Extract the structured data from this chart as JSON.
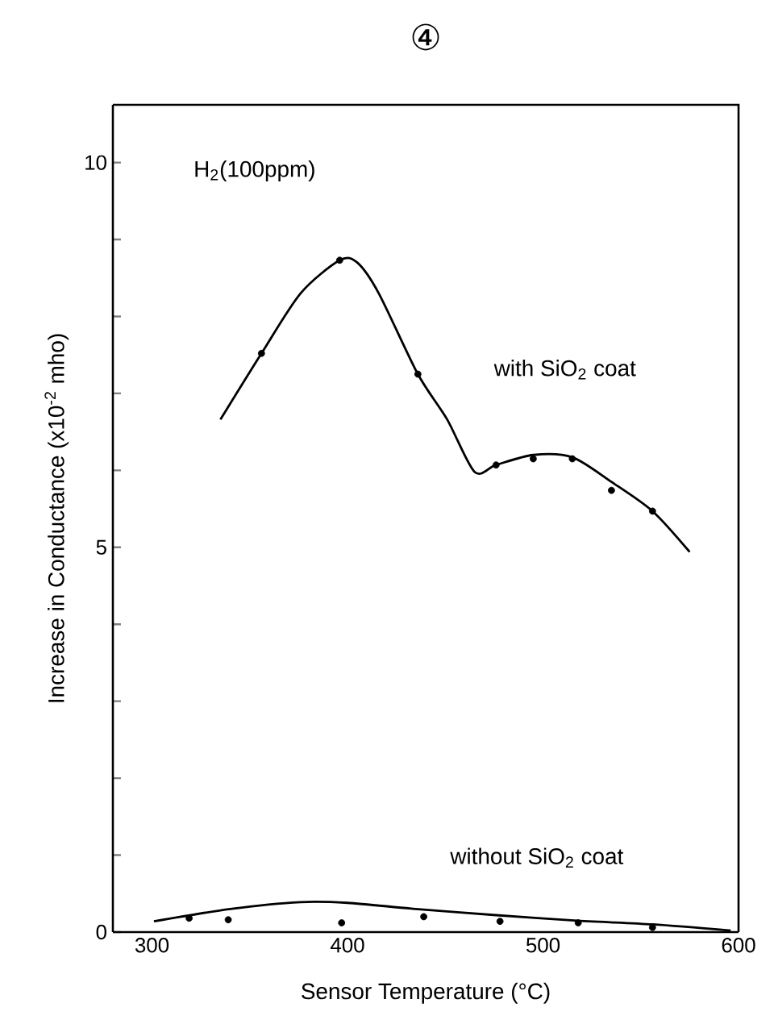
{
  "chart_data": {
    "type": "line",
    "title": "④",
    "xlabel": "Sensor Temperature (°C)",
    "ylabel": "Increase in Conductance (x10$^{-2}$ mho)",
    "xlim": [
      280,
      600
    ],
    "ylim": [
      0,
      10.75
    ],
    "xticks": [
      300,
      400,
      500,
      600
    ],
    "yticks": [
      0,
      {
        "value": 1,
        "label": null
      },
      {
        "value": 2,
        "label": null
      },
      {
        "value": 3,
        "label": null
      },
      {
        "value": 4,
        "label": null
      },
      5,
      {
        "value": 6,
        "label": null
      },
      {
        "value": 7,
        "label": null
      },
      {
        "value": 8,
        "label": null
      },
      {
        "value": 9,
        "label": null
      },
      10
    ],
    "grid": false,
    "annotations": [
      "H$_{2}$(100ppm)",
      "with SiO$_{2}$ coat",
      "without SiO$_{2}$ coat"
    ],
    "series": [
      {
        "color": "#000000",
        "marker": "none",
        "x": [
          335,
          356,
          376,
          396,
          405,
          416,
          436,
          451,
          465,
          476,
          495,
          515,
          535,
          556,
          575
        ],
        "values": [
          6.66,
          7.52,
          8.3,
          8.73,
          8.7,
          8.3,
          7.25,
          6.66,
          5.98,
          6.07,
          6.2,
          6.17,
          5.85,
          5.47,
          4.94
        ]
      },
      {
        "type": "scatter",
        "color": "#000000",
        "marker": "circle",
        "x": [
          356,
          396,
          436,
          476,
          495,
          515,
          535,
          556
        ],
        "values": [
          7.52,
          8.73,
          7.25,
          6.07,
          6.15,
          6.15,
          5.74,
          5.47
        ]
      },
      {
        "color": "#000000",
        "marker": "none",
        "x": [
          301,
          340,
          376,
          400,
          435,
          476,
          516,
          556,
          596
        ],
        "values": [
          0.14,
          0.3,
          0.39,
          0.38,
          0.3,
          0.22,
          0.15,
          0.1,
          0.02
        ]
      },
      {
        "type": "scatter",
        "color": "#000000",
        "marker": "circle",
        "x": [
          319,
          339,
          397,
          439,
          478,
          518,
          556
        ],
        "values": [
          0.18,
          0.16,
          0.12,
          0.2,
          0.14,
          0.12,
          0.06
        ]
      }
    ]
  }
}
